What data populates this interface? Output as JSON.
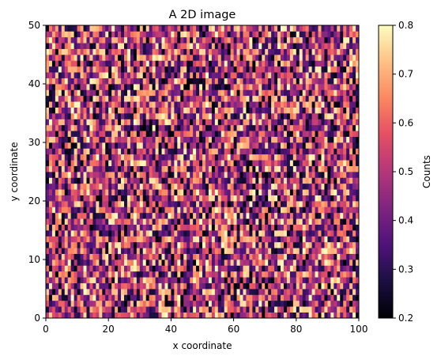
{
  "chart_data": {
    "type": "heatmap",
    "title": "A 2D image",
    "xlabel": "x coordinate",
    "ylabel": "y coordinate",
    "xlim": [
      0,
      100
    ],
    "ylim": [
      0,
      50
    ],
    "xticks": [
      0,
      20,
      40,
      60,
      80,
      100
    ],
    "yticks": [
      0,
      10,
      20,
      30,
      40,
      50
    ],
    "grid": false,
    "colormap": "magma",
    "colorbar": {
      "label": "Counts",
      "vmin": 0.2,
      "vmax": 0.8,
      "ticks": [
        0.2,
        0.3,
        0.4,
        0.5,
        0.6,
        0.7,
        0.8
      ]
    },
    "cell_grid": {
      "columns": 100,
      "rows": 50,
      "x_step": 1,
      "y_step": 1
    },
    "values_note": "pseudo-random values uniformly spread over 0.2–0.8"
  }
}
